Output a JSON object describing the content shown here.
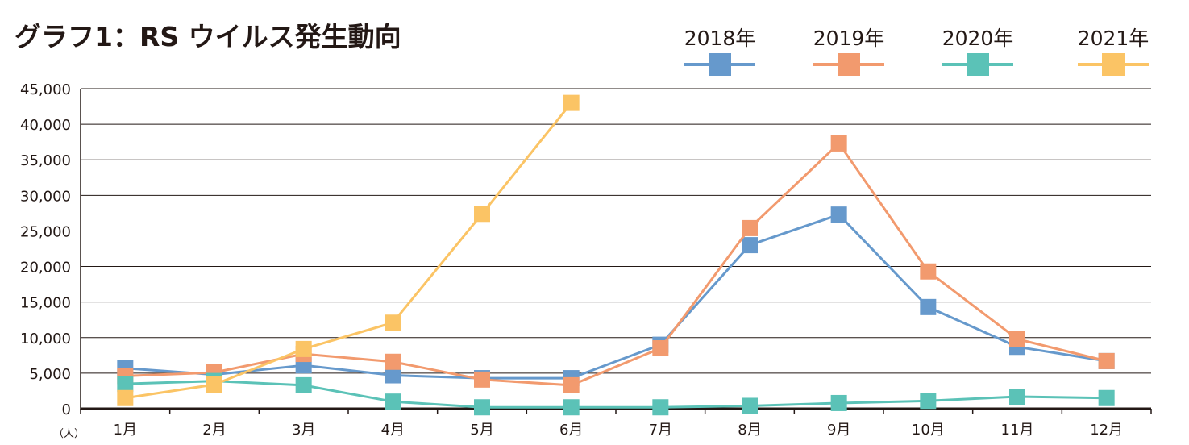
{
  "chart_data": {
    "type": "line",
    "title": "グラフ1：RS ウイルス発生動向",
    "y_unit": "（人）",
    "categories": [
      "1月",
      "2月",
      "3月",
      "4月",
      "5月",
      "6月",
      "7月",
      "8月",
      "9月",
      "10月",
      "11月",
      "12月"
    ],
    "ylim": [
      0,
      45000
    ],
    "y_ticks": [
      "0",
      "5,000",
      "10,000",
      "15,000",
      "20,000",
      "25,000",
      "30,000",
      "35,000",
      "40,000",
      "45,000"
    ],
    "grid": true,
    "legend_position": "top-right",
    "series": [
      {
        "name": "2018年",
        "color": "#6699cc",
        "values": [
          5700,
          4800,
          6100,
          4700,
          4300,
          4300,
          9000,
          23000,
          27300,
          14300,
          8700,
          6700
        ]
      },
      {
        "name": "2019年",
        "color": "#f29a6e",
        "values": [
          4600,
          5100,
          7700,
          6600,
          4100,
          3300,
          8500,
          25400,
          37300,
          19300,
          9800,
          6700
        ]
      },
      {
        "name": "2020年",
        "color": "#5bc2b7",
        "values": [
          3500,
          3900,
          3300,
          1000,
          200,
          200,
          200,
          400,
          800,
          1100,
          1700,
          1500
        ]
      },
      {
        "name": "2021年",
        "color": "#fbc465",
        "values": [
          1500,
          3400,
          8400,
          12100,
          27400,
          43000,
          null,
          null,
          null,
          null,
          null,
          null
        ]
      }
    ]
  }
}
